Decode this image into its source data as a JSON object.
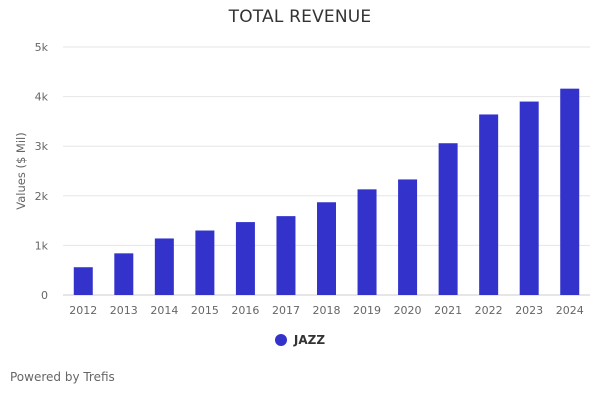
{
  "colors": {
    "bar": "#3333cc",
    "grid": "#e6e6e6",
    "axis": "#cccccc"
  },
  "chart_data": {
    "type": "bar",
    "title": "TOTAL REVENUE",
    "ylabel": "Values ($ Mil)",
    "xlabel": "",
    "categories": [
      "2012",
      "2013",
      "2014",
      "2015",
      "2016",
      "2017",
      "2018",
      "2019",
      "2020",
      "2021",
      "2022",
      "2023",
      "2024"
    ],
    "series": [
      {
        "name": "JAZZ",
        "values": [
          560,
          840,
          1140,
          1300,
          1470,
          1590,
          1870,
          2130,
          2330,
          3060,
          3640,
          3900,
          4160
        ]
      }
    ],
    "ylim": [
      0,
      5000
    ],
    "yticks": [
      0,
      1000,
      2000,
      3000,
      4000,
      5000
    ],
    "ytick_labels": [
      "0",
      "1k",
      "2k",
      "3k",
      "4k",
      "5k"
    ],
    "grid": true,
    "legend_position": "bottom"
  },
  "footer": {
    "credit": "Powered by Trefis"
  }
}
